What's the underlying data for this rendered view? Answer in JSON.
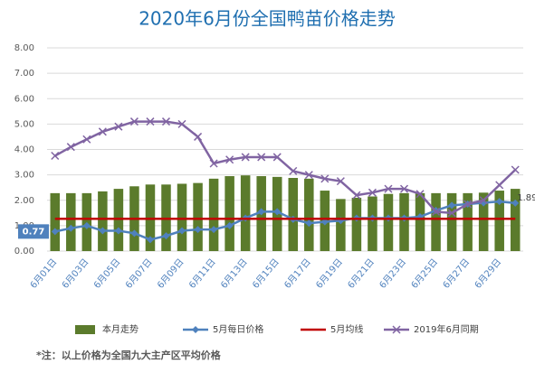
{
  "chart_data": {
    "type": "combo",
    "title": "2020年6月份全国鸭苗价格走势",
    "note": "*注：以上价格为全国九大主产区平均价格",
    "categories": [
      "6月01日",
      null,
      "6月03日",
      null,
      "6月05日",
      null,
      "6月07日",
      null,
      "6月09日",
      null,
      "6月11日",
      null,
      "6月13日",
      null,
      "6月15日",
      null,
      "6月17日",
      null,
      "6月19日",
      null,
      "6月21日",
      null,
      "6月23日",
      null,
      "6月25日",
      null,
      "6月27日",
      null,
      "6月29日",
      null
    ],
    "ylim": [
      0,
      8
    ],
    "yticks": [
      {
        "value": 0,
        "label": "0.00"
      },
      {
        "value": 1,
        "label": "1.00"
      },
      {
        "value": 2,
        "label": "2.00"
      },
      {
        "value": 3,
        "label": "3.00"
      },
      {
        "value": 4,
        "label": "4.00"
      },
      {
        "value": 5,
        "label": "5.00"
      },
      {
        "value": 6,
        "label": "6.00"
      },
      {
        "value": 7,
        "label": "7.00"
      },
      {
        "value": 8,
        "label": "8.00"
      }
    ],
    "grid": true,
    "legend": "bottom",
    "series": [
      {
        "name": "本月走势",
        "kind": "bar",
        "color": "#5b7b2c",
        "values": [
          2.28,
          2.28,
          2.28,
          2.35,
          2.45,
          2.55,
          2.62,
          2.62,
          2.65,
          2.68,
          2.85,
          2.95,
          2.98,
          2.95,
          2.92,
          2.88,
          2.85,
          2.38,
          2.05,
          2.1,
          2.15,
          2.25,
          2.28,
          2.28,
          2.28,
          2.28,
          2.28,
          2.3,
          2.38,
          2.45
        ]
      },
      {
        "name": "5月每日价格",
        "kind": "line",
        "marker": "diamond",
        "color": "#4f81bd",
        "values": [
          0.77,
          0.9,
          1.0,
          0.8,
          0.8,
          0.7,
          0.45,
          0.6,
          0.8,
          0.85,
          0.85,
          1.0,
          1.3,
          1.55,
          1.55,
          1.25,
          1.1,
          1.15,
          1.2,
          1.3,
          1.3,
          1.3,
          1.3,
          1.35,
          1.6,
          1.8,
          1.85,
          1.9,
          1.95,
          1.89
        ],
        "value_labels": [
          "0.77",
          null,
          null,
          null,
          null,
          null,
          null,
          null,
          null,
          null,
          null,
          null,
          null,
          null,
          null,
          null,
          null,
          null,
          null,
          null,
          null,
          null,
          null,
          null,
          null,
          null,
          null,
          null,
          null,
          "1.89"
        ]
      },
      {
        "name": "5月均线",
        "kind": "line",
        "marker": "none",
        "color": "#c00000",
        "values": [
          1.27,
          1.27,
          1.27,
          1.27,
          1.27,
          1.27,
          1.27,
          1.27,
          1.27,
          1.27,
          1.27,
          1.27,
          1.27,
          1.27,
          1.27,
          1.27,
          1.27,
          1.27,
          1.27,
          1.27,
          1.27,
          1.27,
          1.27,
          1.27,
          1.27,
          1.27,
          1.27,
          1.27,
          1.27,
          1.27
        ]
      },
      {
        "name": "2019年6月同期",
        "kind": "line",
        "marker": "x",
        "color": "#8064a2",
        "values": [
          3.75,
          4.1,
          4.4,
          4.7,
          4.9,
          5.1,
          5.1,
          5.1,
          5.0,
          4.5,
          3.45,
          3.6,
          3.7,
          3.7,
          3.7,
          3.15,
          3.0,
          2.85,
          2.75,
          2.2,
          2.3,
          2.45,
          2.45,
          2.25,
          1.55,
          1.5,
          1.85,
          2.0,
          2.6,
          3.2
        ]
      }
    ]
  }
}
